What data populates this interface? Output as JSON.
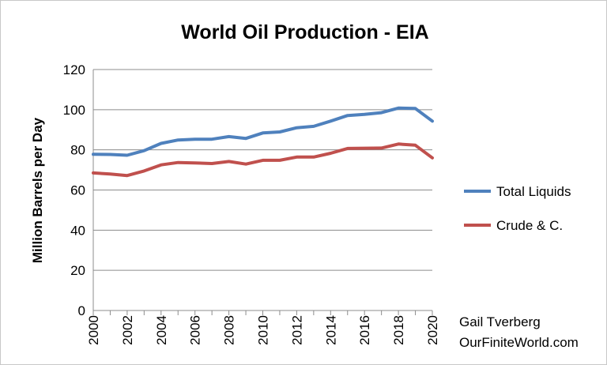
{
  "chart_data": {
    "type": "line",
    "title": "World Oil Production - EIA",
    "ylabel": "Million Barrels per Day",
    "xlabel": "",
    "ylim": [
      0,
      120
    ],
    "yticks": [
      0,
      20,
      40,
      60,
      80,
      100,
      120
    ],
    "xticks": [
      "2000",
      "2002",
      "2004",
      "2006",
      "2008",
      "2010",
      "2012",
      "2014",
      "2016",
      "2018",
      "2020"
    ],
    "grid": "horizontal",
    "legend_position": "right",
    "x": [
      2000,
      2001,
      2002,
      2003,
      2004,
      2005,
      2006,
      2007,
      2008,
      2009,
      2010,
      2011,
      2012,
      2013,
      2014,
      2015,
      2016,
      2017,
      2018,
      2019,
      2020
    ],
    "series": [
      {
        "name": "Total Liquids",
        "color": "#4f81bd",
        "values": [
          77.8,
          77.7,
          77.3,
          79.6,
          83.2,
          84.9,
          85.3,
          85.3,
          86.6,
          85.7,
          88.4,
          88.9,
          91.0,
          91.7,
          94.3,
          97.1,
          97.7,
          98.5,
          100.8,
          100.6,
          94.3
        ]
      },
      {
        "name": "Crude & C.",
        "color": "#c0504d",
        "values": [
          68.5,
          68.0,
          67.2,
          69.5,
          72.5,
          73.7,
          73.5,
          73.2,
          74.2,
          72.9,
          74.8,
          74.8,
          76.4,
          76.4,
          78.3,
          80.7,
          80.8,
          80.9,
          82.9,
          82.3,
          76.0
        ]
      }
    ]
  },
  "credit": {
    "author": "Gail Tverberg",
    "site": "OurFiniteWorld.com"
  }
}
